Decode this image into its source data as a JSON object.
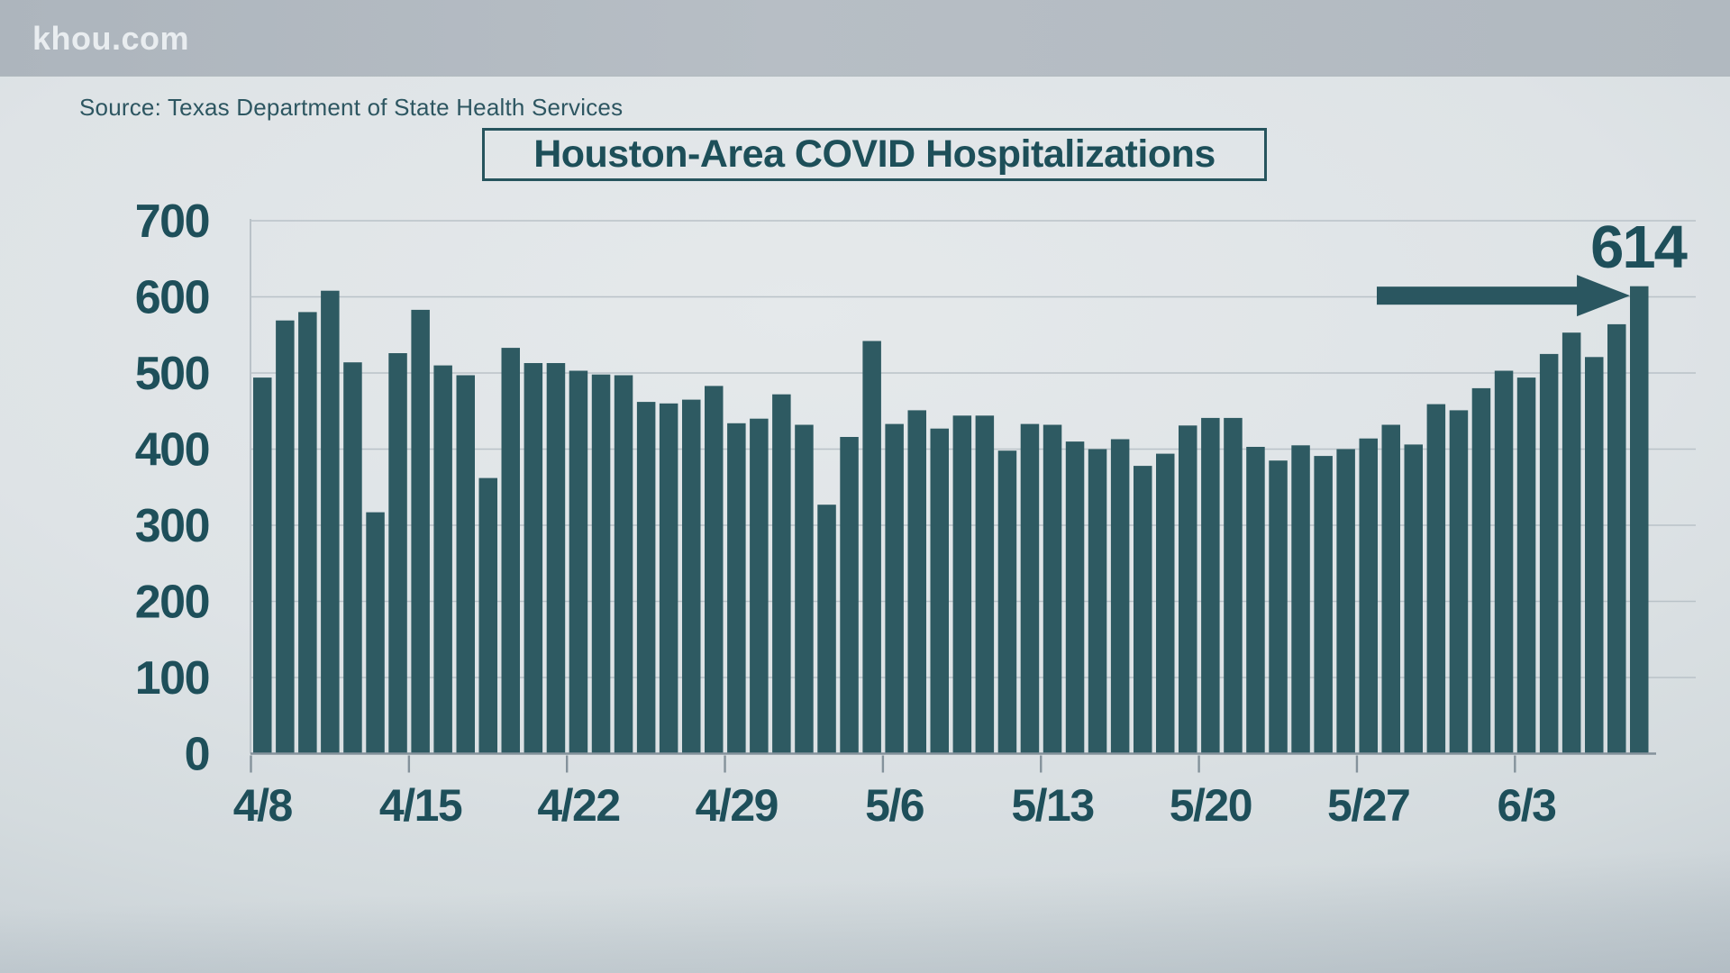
{
  "banner": {
    "brand": "khou.com"
  },
  "source_line": "Source: Texas Department of State Health Services",
  "colors": {
    "bar": "#2e5a62",
    "label_text": "#1e4f5a",
    "arrow": "#2a5660",
    "gridline": "#b9c2c8",
    "axis": "#84929b",
    "banner_bg": "#b2bac1",
    "banner_text": "#e9edf0",
    "background": "#dee3e6"
  },
  "chart_data": {
    "type": "bar",
    "title": "Houston-Area COVID Hospitalizations",
    "xlabel": "",
    "ylabel": "",
    "ylim": [
      0,
      700
    ],
    "grid": "horizontal",
    "legend": "none",
    "y_ticks": [
      0,
      100,
      200,
      300,
      400,
      500,
      600,
      700
    ],
    "x_tick_labels": [
      "4/8",
      "4/15",
      "4/22",
      "4/29",
      "5/6",
      "5/13",
      "5/20",
      "5/27",
      "6/3"
    ],
    "x_tick_indexes": [
      0,
      7,
      14,
      21,
      28,
      35,
      42,
      49,
      56
    ],
    "categories": [
      "4/8",
      "4/9",
      "4/10",
      "4/11",
      "4/12",
      "4/13",
      "4/14",
      "4/15",
      "4/16",
      "4/17",
      "4/18",
      "4/19",
      "4/20",
      "4/21",
      "4/22",
      "4/23",
      "4/24",
      "4/25",
      "4/26",
      "4/27",
      "4/28",
      "4/29",
      "4/30",
      "5/1",
      "5/2",
      "5/3",
      "5/4",
      "5/5",
      "5/6",
      "5/7",
      "5/8",
      "5/9",
      "5/10",
      "5/11",
      "5/12",
      "5/13",
      "5/14",
      "5/15",
      "5/16",
      "5/17",
      "5/18",
      "5/19",
      "5/20",
      "5/21",
      "5/22",
      "5/23",
      "5/24",
      "5/25",
      "5/26",
      "5/27",
      "5/28",
      "5/29",
      "5/30",
      "5/31",
      "6/1",
      "6/2",
      "6/3",
      "6/4",
      "6/5",
      "6/6",
      "6/7",
      "6/8"
    ],
    "values": [
      494,
      569,
      580,
      608,
      514,
      317,
      526,
      583,
      510,
      497,
      362,
      533,
      513,
      513,
      503,
      498,
      497,
      462,
      460,
      465,
      483,
      434,
      440,
      472,
      432,
      327,
      416,
      542,
      433,
      451,
      427,
      444,
      444,
      398,
      433,
      432,
      410,
      400,
      413,
      378,
      394,
      431,
      441,
      441,
      403,
      385,
      405,
      391,
      400,
      414,
      432,
      406,
      459,
      451,
      480,
      503,
      494,
      525,
      553,
      521,
      564,
      614
    ],
    "annotation": {
      "text": "614",
      "points_to": "6/8",
      "arrow": true
    }
  }
}
